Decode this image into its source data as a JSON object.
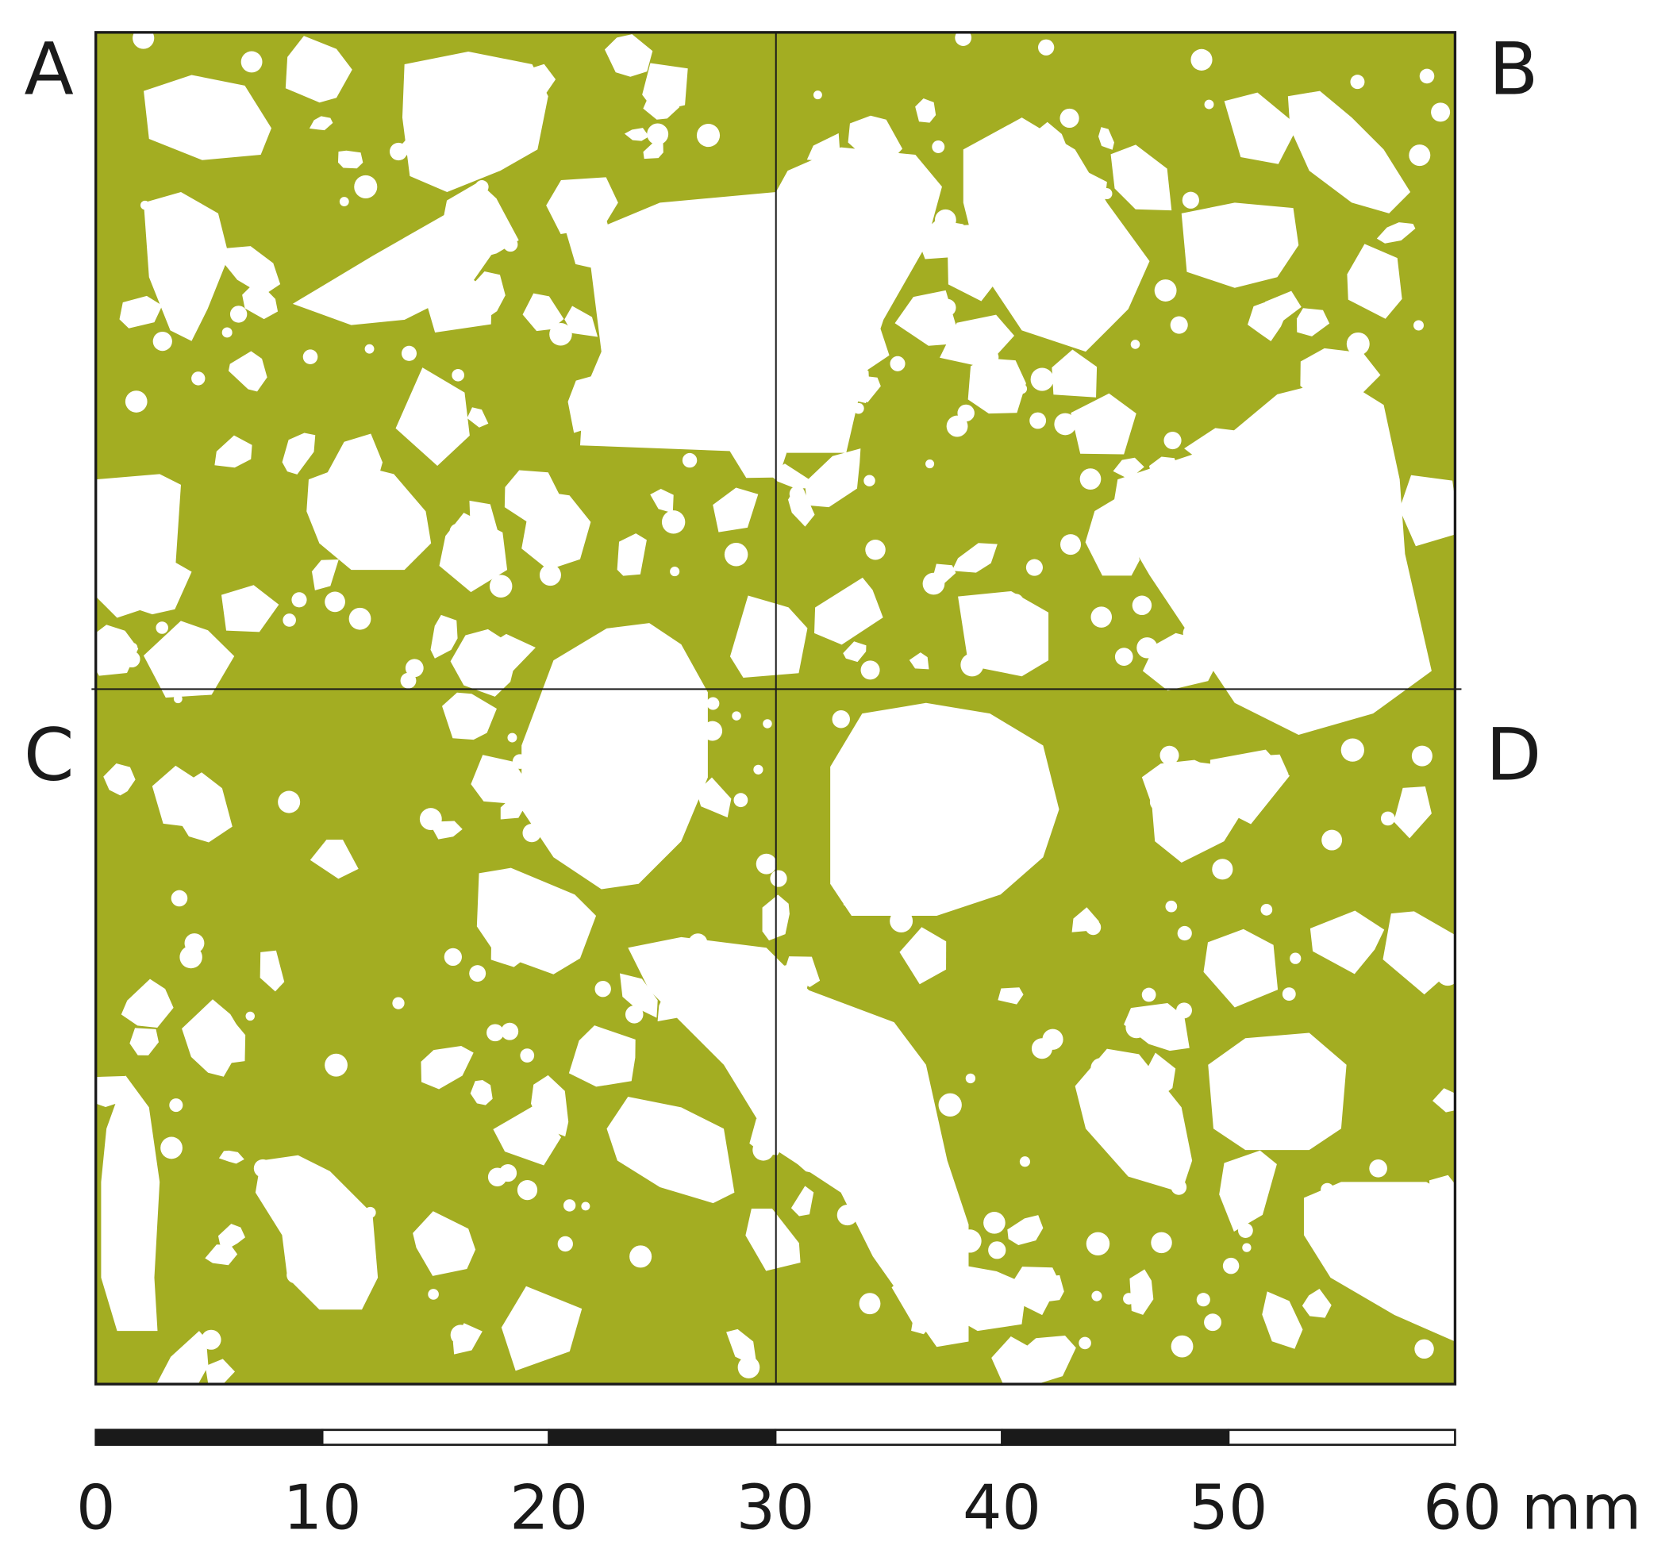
{
  "panel_labels": [
    "A",
    "B",
    "C",
    "D"
  ],
  "scale_bar": {
    "labels": [
      0,
      10,
      20,
      30,
      40,
      50,
      "60 mm"
    ]
  }
}
